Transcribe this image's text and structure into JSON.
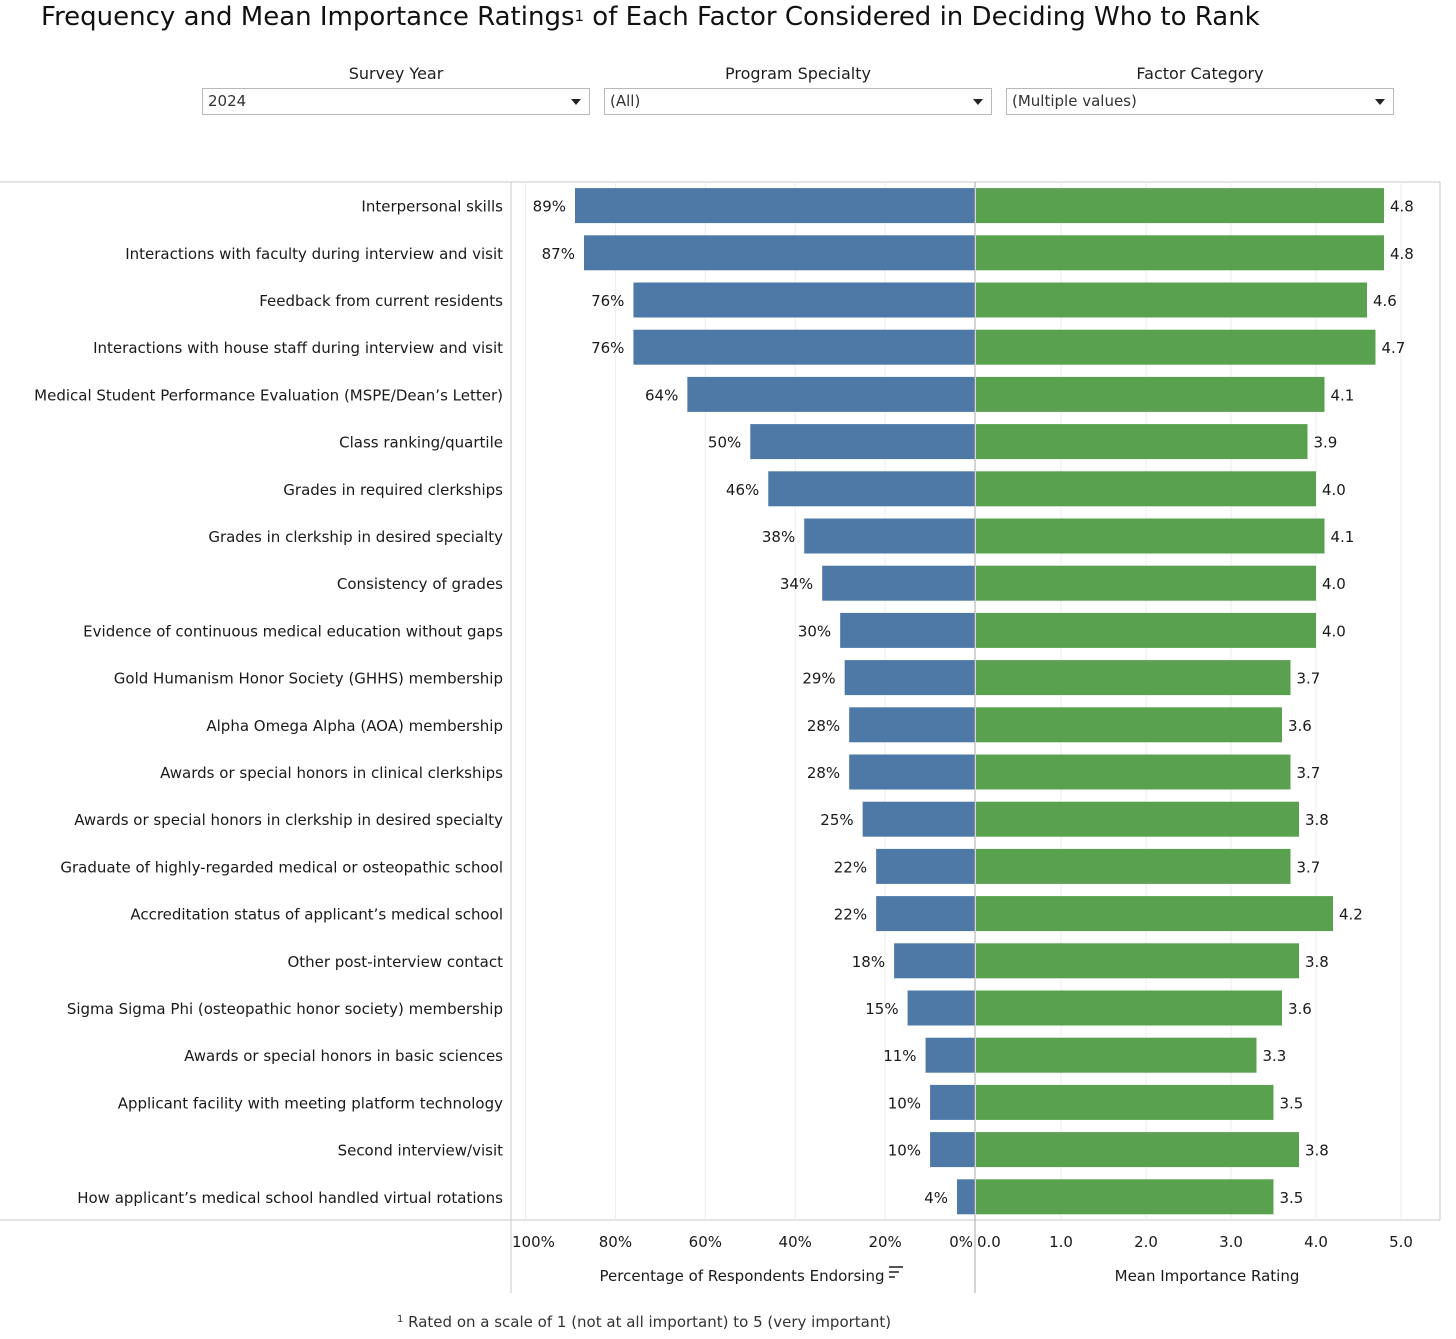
{
  "title": {
    "text": "Frequency and Mean Importance Ratings",
    "sup": "1",
    "rest": " of Each Factor Considered in Deciding Who to Rank"
  },
  "filters": [
    {
      "label": "Survey Year",
      "value": "2024"
    },
    {
      "label": "Program Specialty",
      "value": "(All)"
    },
    {
      "label": "Factor Category",
      "value": "(Multiple values)"
    }
  ],
  "footnote": {
    "sup": "1",
    "text": " Rated on a scale of 1 (not at all important) to 5 (very important)"
  },
  "colors": {
    "percent_bar": "#4e79a7",
    "rating_bar": "#59a14f",
    "grid": "#ececec",
    "axis": "#c8c8c8",
    "sort_icon": "#555555"
  },
  "icons": {
    "sort": "sort-descending-icon"
  },
  "chart_data": [
    {
      "type": "bar",
      "orientation": "horizontal",
      "direction": "right-to-left",
      "xlabel": "Percentage of Respondents Endorsing",
      "xlim": [
        0,
        100
      ],
      "ticks": [
        "100%",
        "80%",
        "60%",
        "40%",
        "20%",
        "0%"
      ],
      "tick_values": [
        100,
        80,
        60,
        40,
        20,
        0
      ],
      "categories": [
        "Interpersonal skills",
        "Interactions with faculty during interview and visit",
        "Feedback from current residents",
        "Interactions with house staff during interview and visit",
        "Medical Student Performance Evaluation (MSPE/Dean’s Letter)",
        "Class ranking/quartile",
        "Grades in required clerkships",
        "Grades in clerkship in desired specialty",
        "Consistency of grades",
        "Evidence of continuous medical education without gaps",
        "Gold Humanism Honor Society (GHHS) membership",
        "Alpha Omega Alpha (AOA) membership",
        "Awards or special honors in clinical clerkships",
        "Awards or special honors in clerkship in desired specialty",
        "Graduate of highly-regarded medical or osteopathic school",
        "Accreditation status of applicant’s medical school",
        "Other post-interview contact",
        "Sigma Sigma Phi (osteopathic honor society) membership",
        "Awards or special honors in basic sciences",
        "Applicant facility with meeting platform technology",
        "Second interview/visit",
        "How applicant’s medical school handled virtual rotations"
      ],
      "values": [
        89,
        87,
        76,
        76,
        64,
        50,
        46,
        38,
        34,
        30,
        29,
        28,
        28,
        25,
        22,
        22,
        18,
        15,
        11,
        10,
        10,
        4
      ],
      "labels": [
        "89%",
        "87%",
        "76%",
        "76%",
        "64%",
        "50%",
        "46%",
        "38%",
        "34%",
        "30%",
        "29%",
        "28%",
        "28%",
        "25%",
        "22%",
        "22%",
        "18%",
        "15%",
        "11%",
        "10%",
        "10%",
        "4%"
      ]
    },
    {
      "type": "bar",
      "orientation": "horizontal",
      "xlabel": "Mean Importance Rating",
      "xlim": [
        0,
        5.2
      ],
      "ticks": [
        "0.0",
        "1.0",
        "2.0",
        "3.0",
        "4.0",
        "5.0"
      ],
      "tick_values": [
        0,
        1,
        2,
        3,
        4,
        5
      ],
      "values": [
        4.8,
        4.8,
        4.6,
        4.7,
        4.1,
        3.9,
        4.0,
        4.1,
        4.0,
        4.0,
        3.7,
        3.6,
        3.7,
        3.8,
        3.7,
        4.2,
        3.8,
        3.6,
        3.3,
        3.5,
        3.8,
        3.5
      ],
      "labels": [
        "4.8",
        "4.8",
        "4.6",
        "4.7",
        "4.1",
        "3.9",
        "4.0",
        "4.1",
        "4.0",
        "4.0",
        "3.7",
        "3.6",
        "3.7",
        "3.8",
        "3.7",
        "4.2",
        "3.8",
        "3.6",
        "3.3",
        "3.5",
        "3.8",
        "3.5"
      ]
    }
  ]
}
